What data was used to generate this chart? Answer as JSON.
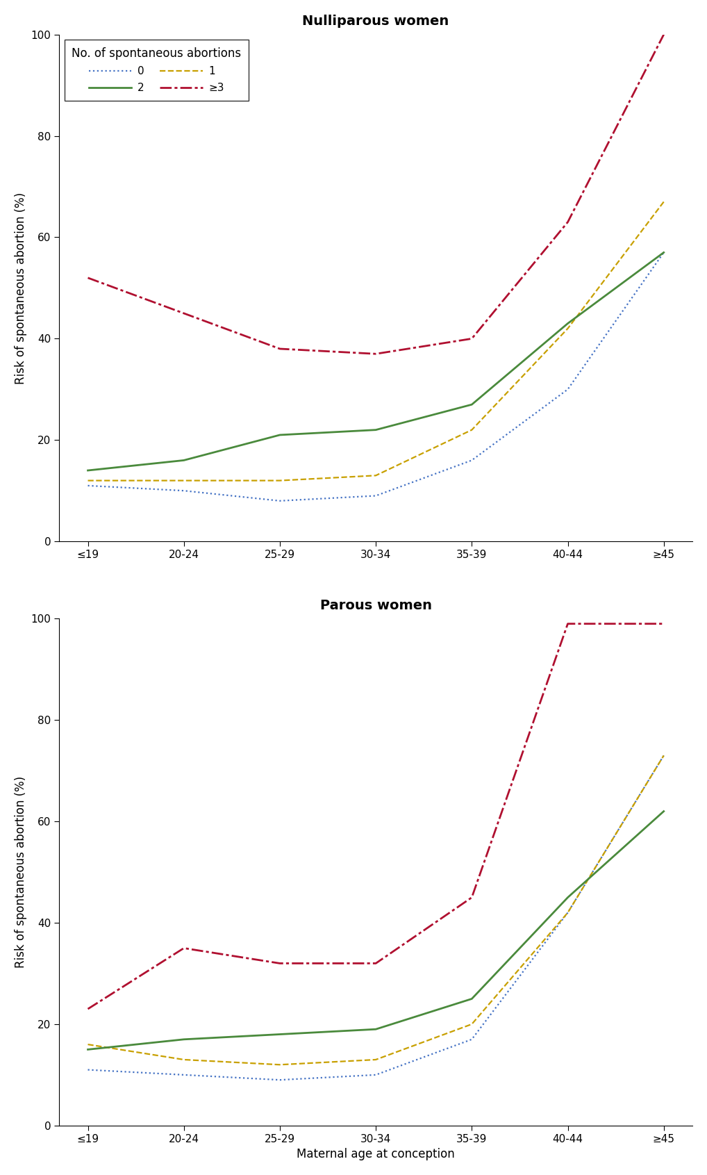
{
  "age_labels": [
    "≤19",
    "20-24",
    "25-29",
    "30-34",
    "35-39",
    "40-44",
    "≥45"
  ],
  "nulliparous": {
    "title": "Nulliparous women",
    "series": {
      "0": [
        11,
        10,
        8,
        9,
        16,
        30,
        57
      ],
      "1": [
        12,
        12,
        12,
        13,
        22,
        42,
        67
      ],
      "2": [
        14,
        16,
        21,
        22,
        27,
        43,
        57
      ],
      "3plus": [
        52,
        45,
        38,
        37,
        40,
        63,
        100
      ]
    }
  },
  "parous": {
    "title": "Parous women",
    "series": {
      "0": [
        11,
        10,
        9,
        10,
        17,
        42,
        73
      ],
      "1": [
        16,
        13,
        12,
        13,
        20,
        42,
        73
      ],
      "2": [
        15,
        17,
        18,
        19,
        25,
        45,
        62
      ],
      "3plus": [
        23,
        35,
        32,
        32,
        45,
        99,
        99
      ]
    }
  },
  "colors": {
    "0": "#4472c4",
    "1": "#c8a000",
    "2": "#4a8a3c",
    "3plus": "#b01030"
  },
  "linewidths": {
    "0": 1.6,
    "1": 1.6,
    "2": 2.0,
    "3plus": 2.0
  },
  "legend_labels": {
    "0": "0",
    "1": "1",
    "2": "2",
    "3plus": "≥3"
  },
  "legend_title": "No. of spontaneous abortions",
  "ylabel": "Risk of spontaneous abortion (%)",
  "xlabel": "Maternal age at conception",
  "ylim": [
    0,
    100
  ],
  "yticks": [
    0,
    20,
    40,
    60,
    80,
    100
  ],
  "background_color": "#ffffff",
  "title_fontsize": 14,
  "label_fontsize": 12,
  "tick_fontsize": 11,
  "legend_fontsize": 11,
  "legend_title_fontsize": 12
}
